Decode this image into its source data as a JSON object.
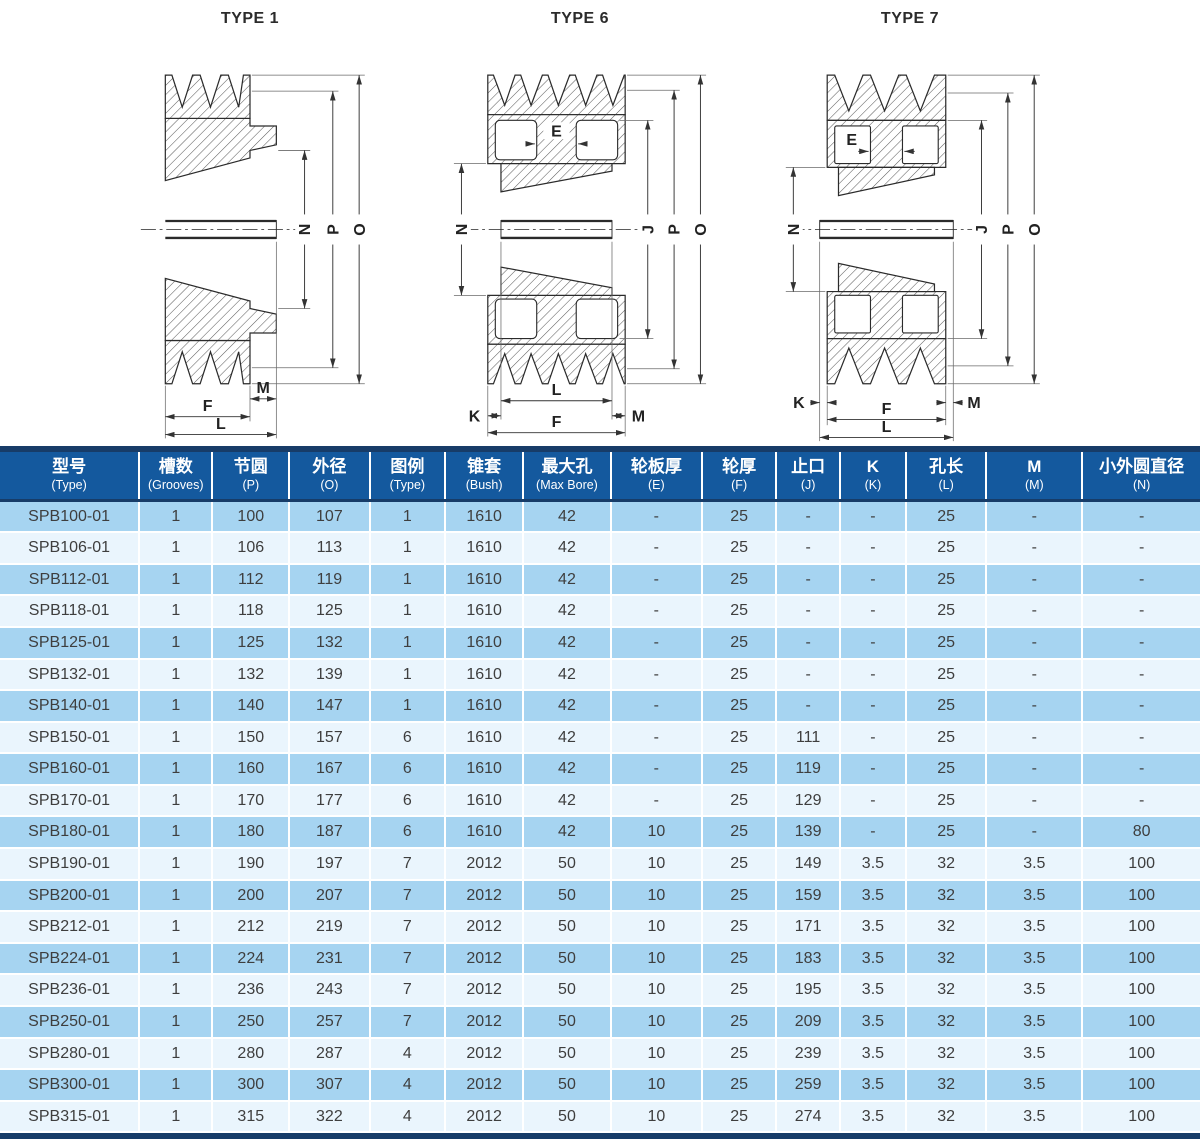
{
  "diagrams": [
    {
      "title": "TYPE 1",
      "dims": {
        "N": "N",
        "P": "P",
        "O": "O",
        "M": "M",
        "F": "F",
        "L": "L"
      }
    },
    {
      "title": "TYPE 6",
      "dims": {
        "E": "E",
        "N": "N",
        "J": "J",
        "P": "P",
        "O": "O",
        "K": "K",
        "L": "L",
        "M": "M",
        "F": "F"
      }
    },
    {
      "title": "TYPE 7",
      "dims": {
        "E": "E",
        "N": "N",
        "J": "J",
        "P": "P",
        "O": "O",
        "K": "K",
        "M": "M",
        "F": "F",
        "L": "L"
      }
    }
  ],
  "table": {
    "columns": [
      {
        "zh": "型号",
        "en": "(Type)"
      },
      {
        "zh": "槽数",
        "en": "(Grooves)"
      },
      {
        "zh": "节圆",
        "en": "(P)"
      },
      {
        "zh": "外径",
        "en": "(O)"
      },
      {
        "zh": "图例",
        "en": "(Type)"
      },
      {
        "zh": "锥套",
        "en": "(Bush)"
      },
      {
        "zh": "最大孔",
        "en": "(Max Bore)"
      },
      {
        "zh": "轮板厚",
        "en": "(E)"
      },
      {
        "zh": "轮厚",
        "en": "(F)"
      },
      {
        "zh": "止口",
        "en": "(J)"
      },
      {
        "zh": "K",
        "en": "(K)"
      },
      {
        "zh": "孔长",
        "en": "(L)"
      },
      {
        "zh": "M",
        "en": "(M)"
      },
      {
        "zh": "小外圆直径",
        "en": "(N)"
      }
    ],
    "rows": [
      [
        "SPB100-01",
        "1",
        "100",
        "107",
        "1",
        "1610",
        "42",
        "-",
        "25",
        "-",
        "-",
        "25",
        "-",
        "-"
      ],
      [
        "SPB106-01",
        "1",
        "106",
        "113",
        "1",
        "1610",
        "42",
        "-",
        "25",
        "-",
        "-",
        "25",
        "-",
        "-"
      ],
      [
        "SPB112-01",
        "1",
        "112",
        "119",
        "1",
        "1610",
        "42",
        "-",
        "25",
        "-",
        "-",
        "25",
        "-",
        "-"
      ],
      [
        "SPB118-01",
        "1",
        "118",
        "125",
        "1",
        "1610",
        "42",
        "-",
        "25",
        "-",
        "-",
        "25",
        "-",
        "-"
      ],
      [
        "SPB125-01",
        "1",
        "125",
        "132",
        "1",
        "1610",
        "42",
        "-",
        "25",
        "-",
        "-",
        "25",
        "-",
        "-"
      ],
      [
        "SPB132-01",
        "1",
        "132",
        "139",
        "1",
        "1610",
        "42",
        "-",
        "25",
        "-",
        "-",
        "25",
        "-",
        "-"
      ],
      [
        "SPB140-01",
        "1",
        "140",
        "147",
        "1",
        "1610",
        "42",
        "-",
        "25",
        "-",
        "-",
        "25",
        "-",
        "-"
      ],
      [
        "SPB150-01",
        "1",
        "150",
        "157",
        "6",
        "1610",
        "42",
        "-",
        "25",
        "111",
        "-",
        "25",
        "-",
        "-"
      ],
      [
        "SPB160-01",
        "1",
        "160",
        "167",
        "6",
        "1610",
        "42",
        "-",
        "25",
        "119",
        "-",
        "25",
        "-",
        "-"
      ],
      [
        "SPB170-01",
        "1",
        "170",
        "177",
        "6",
        "1610",
        "42",
        "-",
        "25",
        "129",
        "-",
        "25",
        "-",
        "-"
      ],
      [
        "SPB180-01",
        "1",
        "180",
        "187",
        "6",
        "1610",
        "42",
        "10",
        "25",
        "139",
        "-",
        "25",
        "-",
        "80"
      ],
      [
        "SPB190-01",
        "1",
        "190",
        "197",
        "7",
        "2012",
        "50",
        "10",
        "25",
        "149",
        "3.5",
        "32",
        "3.5",
        "100"
      ],
      [
        "SPB200-01",
        "1",
        "200",
        "207",
        "7",
        "2012",
        "50",
        "10",
        "25",
        "159",
        "3.5",
        "32",
        "3.5",
        "100"
      ],
      [
        "SPB212-01",
        "1",
        "212",
        "219",
        "7",
        "2012",
        "50",
        "10",
        "25",
        "171",
        "3.5",
        "32",
        "3.5",
        "100"
      ],
      [
        "SPB224-01",
        "1",
        "224",
        "231",
        "7",
        "2012",
        "50",
        "10",
        "25",
        "183",
        "3.5",
        "32",
        "3.5",
        "100"
      ],
      [
        "SPB236-01",
        "1",
        "236",
        "243",
        "7",
        "2012",
        "50",
        "10",
        "25",
        "195",
        "3.5",
        "32",
        "3.5",
        "100"
      ],
      [
        "SPB250-01",
        "1",
        "250",
        "257",
        "7",
        "2012",
        "50",
        "10",
        "25",
        "209",
        "3.5",
        "32",
        "3.5",
        "100"
      ],
      [
        "SPB280-01",
        "1",
        "280",
        "287",
        "4",
        "2012",
        "50",
        "10",
        "25",
        "239",
        "3.5",
        "32",
        "3.5",
        "100"
      ],
      [
        "SPB300-01",
        "1",
        "300",
        "307",
        "4",
        "2012",
        "50",
        "10",
        "25",
        "259",
        "3.5",
        "32",
        "3.5",
        "100"
      ],
      [
        "SPB315-01",
        "1",
        "315",
        "322",
        "4",
        "2012",
        "50",
        "10",
        "25",
        "274",
        "3.5",
        "32",
        "3.5",
        "100"
      ]
    ]
  },
  "colors": {
    "header_bg": "#14599e",
    "navy_border": "#173c68",
    "row_dark": "#a6d4f1",
    "row_light": "#eaf5fd"
  }
}
